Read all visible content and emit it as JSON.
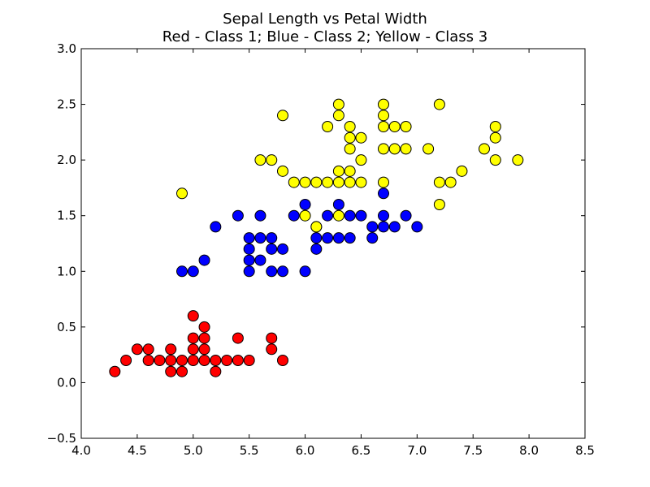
{
  "chart_data": {
    "type": "scatter",
    "title": "Sepal Length vs Petal Width",
    "subtitle": "Red - Class 1; Blue - Class 2; Yellow - Class 3",
    "xlabel": "",
    "ylabel": "",
    "xlim": [
      4.0,
      8.5
    ],
    "ylim": [
      -0.5,
      3.0
    ],
    "x_ticks": [
      "4.0",
      "4.5",
      "5.0",
      "5.5",
      "6.0",
      "6.5",
      "7.0",
      "7.5",
      "8.0",
      "8.5"
    ],
    "y_ticks": [
      "−0.5",
      "0.0",
      "0.5",
      "1.0",
      "1.5",
      "2.0",
      "2.5",
      "3.0"
    ],
    "grid": false,
    "legend": "none",
    "series": [
      {
        "color": "#ff0000",
        "points": [
          [
            4.3,
            0.1
          ],
          [
            4.4,
            0.2
          ],
          [
            4.5,
            0.3
          ],
          [
            4.6,
            0.2
          ],
          [
            4.6,
            0.3
          ],
          [
            4.7,
            0.2
          ],
          [
            4.8,
            0.1
          ],
          [
            4.8,
            0.2
          ],
          [
            4.8,
            0.3
          ],
          [
            4.9,
            0.1
          ],
          [
            4.9,
            0.2
          ],
          [
            5.0,
            0.2
          ],
          [
            5.0,
            0.3
          ],
          [
            5.0,
            0.4
          ],
          [
            5.0,
            0.6
          ],
          [
            5.1,
            0.2
          ],
          [
            5.1,
            0.3
          ],
          [
            5.1,
            0.4
          ],
          [
            5.1,
            0.5
          ],
          [
            5.2,
            0.1
          ],
          [
            5.2,
            0.2
          ],
          [
            5.3,
            0.2
          ],
          [
            5.4,
            0.2
          ],
          [
            5.4,
            0.4
          ],
          [
            5.5,
            0.2
          ],
          [
            5.7,
            0.3
          ],
          [
            5.7,
            0.4
          ],
          [
            5.8,
            0.2
          ]
        ]
      },
      {
        "color": "#0000ff",
        "points": [
          [
            4.9,
            1.0
          ],
          [
            5.0,
            1.0
          ],
          [
            5.1,
            1.1
          ],
          [
            5.2,
            1.4
          ],
          [
            5.4,
            1.5
          ],
          [
            5.5,
            1.0
          ],
          [
            5.5,
            1.1
          ],
          [
            5.5,
            1.2
          ],
          [
            5.5,
            1.3
          ],
          [
            5.6,
            1.1
          ],
          [
            5.6,
            1.3
          ],
          [
            5.6,
            1.5
          ],
          [
            5.7,
            1.0
          ],
          [
            5.7,
            1.2
          ],
          [
            5.7,
            1.3
          ],
          [
            5.8,
            1.0
          ],
          [
            5.8,
            1.2
          ],
          [
            5.9,
            1.5
          ],
          [
            6.0,
            1.0
          ],
          [
            6.0,
            1.6
          ],
          [
            6.1,
            1.2
          ],
          [
            6.1,
            1.3
          ],
          [
            6.1,
            1.4
          ],
          [
            6.2,
            1.3
          ],
          [
            6.2,
            1.5
          ],
          [
            6.3,
            1.3
          ],
          [
            6.3,
            1.6
          ],
          [
            6.4,
            1.3
          ],
          [
            6.4,
            1.5
          ],
          [
            6.5,
            1.5
          ],
          [
            6.6,
            1.3
          ],
          [
            6.6,
            1.4
          ],
          [
            6.7,
            1.4
          ],
          [
            6.7,
            1.5
          ],
          [
            6.7,
            1.7
          ],
          [
            6.8,
            1.4
          ],
          [
            6.9,
            1.5
          ],
          [
            7.0,
            1.4
          ]
        ]
      },
      {
        "color": "#ffff00",
        "points": [
          [
            4.9,
            1.7
          ],
          [
            5.6,
            2.0
          ],
          [
            5.7,
            2.0
          ],
          [
            5.8,
            1.9
          ],
          [
            5.8,
            2.4
          ],
          [
            5.9,
            1.8
          ],
          [
            6.0,
            1.5
          ],
          [
            6.0,
            1.8
          ],
          [
            6.1,
            1.4
          ],
          [
            6.1,
            1.8
          ],
          [
            6.2,
            1.8
          ],
          [
            6.2,
            2.3
          ],
          [
            6.3,
            1.5
          ],
          [
            6.3,
            1.8
          ],
          [
            6.3,
            1.9
          ],
          [
            6.3,
            2.4
          ],
          [
            6.3,
            2.5
          ],
          [
            6.4,
            1.8
          ],
          [
            6.4,
            1.9
          ],
          [
            6.4,
            2.1
          ],
          [
            6.4,
            2.2
          ],
          [
            6.4,
            2.3
          ],
          [
            6.5,
            1.8
          ],
          [
            6.5,
            2.0
          ],
          [
            6.5,
            2.2
          ],
          [
            6.7,
            1.8
          ],
          [
            6.7,
            2.1
          ],
          [
            6.7,
            2.3
          ],
          [
            6.7,
            2.4
          ],
          [
            6.7,
            2.5
          ],
          [
            6.8,
            2.1
          ],
          [
            6.8,
            2.3
          ],
          [
            6.9,
            2.1
          ],
          [
            6.9,
            2.3
          ],
          [
            7.1,
            2.1
          ],
          [
            7.2,
            1.6
          ],
          [
            7.2,
            1.8
          ],
          [
            7.2,
            2.5
          ],
          [
            7.3,
            1.8
          ],
          [
            7.4,
            1.9
          ],
          [
            7.6,
            2.1
          ],
          [
            7.7,
            2.0
          ],
          [
            7.7,
            2.2
          ],
          [
            7.7,
            2.3
          ],
          [
            7.9,
            2.0
          ]
        ]
      }
    ]
  }
}
